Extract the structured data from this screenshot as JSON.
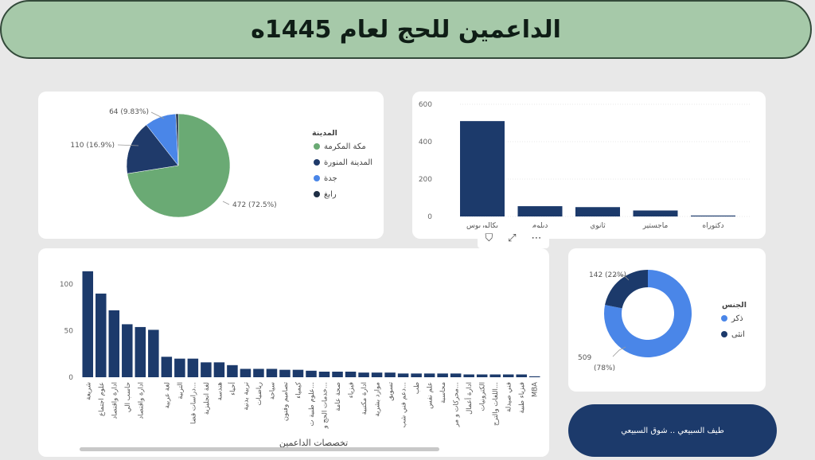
{
  "title": "الداعمين للحج لعام 1445ه",
  "credit": "طيف السبيعي .. شوق السبيعي",
  "colors": {
    "navy": "#1c3a6b",
    "green": "#6aaa74",
    "blue": "#4a86e8",
    "dark": "#1f2f45"
  },
  "icons": {
    "filter": "filter-icon",
    "focus": "focus-mode-icon",
    "more": "more-options-icon"
  },
  "city_chart": {
    "type": "pie",
    "legend_title": "المدينة",
    "slices": [
      {
        "name": "مكة المكرمة",
        "value": 472,
        "label": "472 (72.5%)",
        "color": "#6aaa74"
      },
      {
        "name": "المدينة المنورة",
        "value": 110,
        "label": "110 (16.9%)",
        "color": "#1f3a6a"
      },
      {
        "name": "جدة",
        "value": 64,
        "label": "64 (9.83%)",
        "color": "#4a86e8"
      },
      {
        "name": "رابغ",
        "value": 5,
        "label": "",
        "color": "#1f2f45"
      }
    ]
  },
  "degree_chart": {
    "type": "bar",
    "categories": [
      "بكالوريوس",
      "دبلوم",
      "ثانوي",
      "ماجستير",
      "دكتوراه"
    ],
    "values": [
      510,
      55,
      50,
      32,
      5
    ],
    "yticks": [
      0,
      200,
      400,
      600
    ],
    "ylim": [
      0,
      600
    ]
  },
  "gender_chart": {
    "type": "pie",
    "legend_title": "الجنس",
    "slices": [
      {
        "name": "ذكر",
        "value": 509,
        "label1": "509",
        "label2": "(78%)",
        "color": "#4a86e8"
      },
      {
        "name": "انثى",
        "value": 142,
        "label": "142 (22%)",
        "color": "#1c3a6b"
      }
    ]
  },
  "specialty_chart": {
    "type": "bar",
    "xlabel": "تخصصات الداعمين",
    "yticks": [
      0,
      50,
      100
    ],
    "ylim": [
      0,
      125
    ],
    "categories": [
      "شريعة",
      "علوم اجتماع",
      "ادارة واقتصاد",
      "حاسب الي",
      "ادارة واقتصاد",
      "",
      "لغة عربية",
      "التربية",
      "دراسات قضا...",
      "لغة انجليزية",
      "هندسة",
      "أحياء",
      "تربية بدنية",
      "رياضيات",
      "سياحة",
      "تصاميم وفنون",
      "كيمياء",
      "علوم طبية ت...",
      "خدمات الحج و...",
      "صحة عامة",
      "فيزياء",
      "ادارة مكتبية",
      "موارد بشرية",
      "تسويق",
      "دعم فني شب...",
      "طب",
      "علم نفس",
      "محاسبة",
      "محركات و مر...",
      "ادارة أعمال",
      "الكترونيات",
      "اللغات والترج...",
      "فني صيدلة",
      "فيزياء طبية",
      "MBA"
    ],
    "values": [
      114,
      90,
      72,
      57,
      54,
      51,
      22,
      20,
      20,
      16,
      16,
      13,
      9,
      9,
      9,
      8,
      8,
      7,
      6,
      6,
      6,
      5,
      5,
      5,
      4,
      4,
      4,
      4,
      4,
      3,
      3,
      3,
      3,
      3,
      1
    ]
  }
}
